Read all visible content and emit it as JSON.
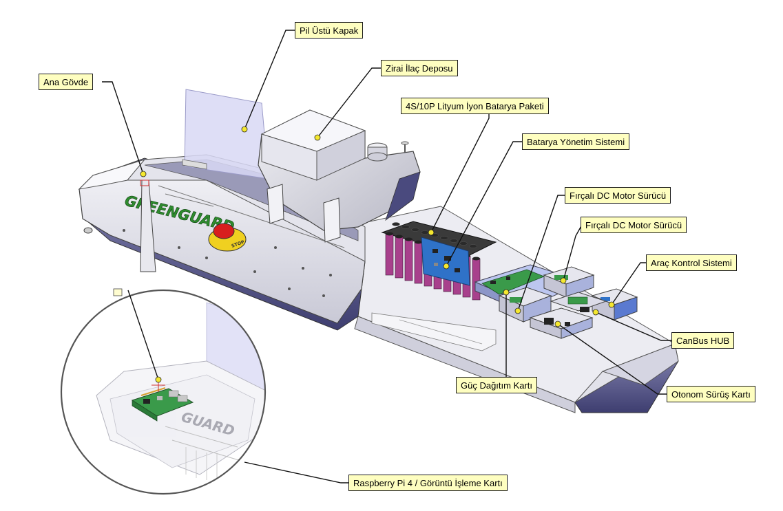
{
  "brand": {
    "name": "GREENGUARD",
    "inset_name": "GUARD"
  },
  "stop_button": {
    "text": "STOP"
  },
  "callouts": [
    {
      "id": "ana-govde",
      "label": "Ana Gövde"
    },
    {
      "id": "pil-ustu-kapak",
      "label": "Pil Üstü Kapak"
    },
    {
      "id": "zirai-ilac-deposu",
      "label": "Zirai İlaç Deposu"
    },
    {
      "id": "batarya-paketi",
      "label": "4S/10P Lityum İyon Batarya Paketi"
    },
    {
      "id": "batarya-yonetim-sistemi",
      "label": "Batarya Yönetim Sistemi"
    },
    {
      "id": "motor-surucu-1",
      "label": "Fırçalı DC Motor Sürücü"
    },
    {
      "id": "motor-surucu-2",
      "label": "Fırçalı DC Motor Sürücü"
    },
    {
      "id": "arac-kontrol-sistemi",
      "label": "Araç Kontrol Sistemi"
    },
    {
      "id": "canbus-hub",
      "label": "CanBus HUB"
    },
    {
      "id": "otonom-surus-karti",
      "label": "Otonom Sürüş Kartı"
    },
    {
      "id": "guc-dagitim-karti",
      "label": "Güç Dağıtım Kartı"
    },
    {
      "id": "raspberry-pi",
      "label": "Raspberry Pi 4 / Görüntü İşleme Kartı"
    }
  ],
  "colors": {
    "body_fill": "#e6e6ec",
    "body_shadow": "#5a5a8c",
    "brand_green": "#2e8b2e",
    "lid_tint": "#d8d8f4",
    "battery_cell": "#a8408c",
    "pcb_blue": "#2f72c8",
    "pcb_green": "#3a9a4a",
    "label_fill": "#fefec0",
    "callout_dot": "#f5e830"
  }
}
